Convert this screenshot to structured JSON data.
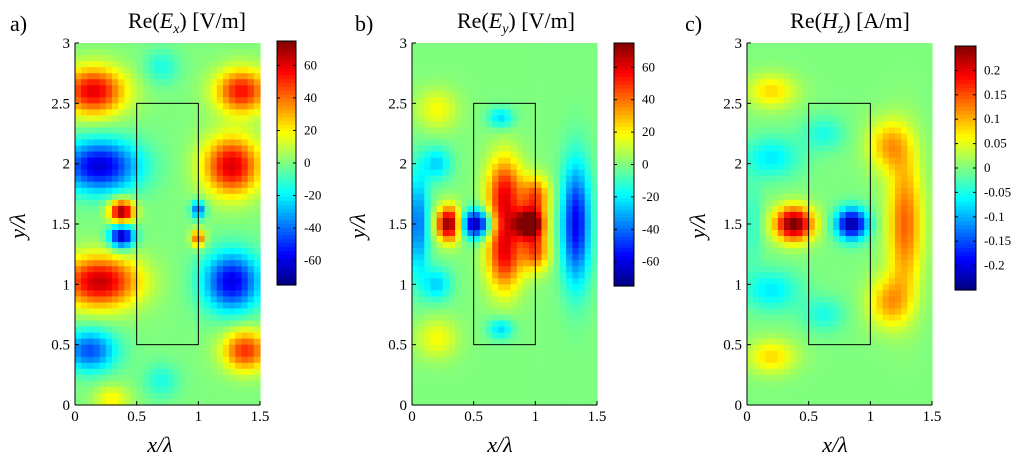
{
  "chart_data": [
    {
      "type": "heatmap",
      "panel_label": "a)",
      "title": {
        "quantity": "Re(",
        "symbol": "E",
        "sub": "x",
        "suffix": ") [V/m]"
      },
      "xlabel": "x/λ",
      "ylabel": "y/λ",
      "xlim": [
        0,
        1.5
      ],
      "ylim": [
        0,
        3
      ],
      "xticks": [
        "0",
        "0.5",
        "1",
        "1.5"
      ],
      "yticks": [
        "0",
        "0.5",
        "1",
        "1.5",
        "2",
        "2.5",
        "3"
      ],
      "colorbar": {
        "range": [
          -75,
          75
        ],
        "ticks": [
          {
            "v": 60,
            "t": "60"
          },
          {
            "v": 40,
            "t": "40"
          },
          {
            "v": 20,
            "t": "20"
          },
          {
            "v": 0,
            "t": "0"
          },
          {
            "v": -20,
            "t": "-20"
          },
          {
            "v": -40,
            "t": "-40"
          },
          {
            "v": -60,
            "t": "-60"
          }
        ]
      },
      "rectangle": {
        "x": [
          0.5,
          1.0
        ],
        "y": [
          0.5,
          2.5
        ]
      },
      "field_features": [
        {
          "x": 0.38,
          "y": 1.6,
          "sx": 0.07,
          "sy": 0.07,
          "v": 75
        },
        {
          "x": 0.38,
          "y": 1.4,
          "sx": 0.07,
          "sy": 0.07,
          "v": -70
        },
        {
          "x": 1.0,
          "y": 1.62,
          "sx": 0.04,
          "sy": 0.05,
          "v": -45
        },
        {
          "x": 1.0,
          "y": 1.38,
          "sx": 0.04,
          "sy": 0.05,
          "v": 45
        },
        {
          "x": 0.15,
          "y": 2.6,
          "sx": 0.18,
          "sy": 0.14,
          "v": 60
        },
        {
          "x": 1.35,
          "y": 2.6,
          "sx": 0.15,
          "sy": 0.13,
          "v": 55
        },
        {
          "x": 0.2,
          "y": 1.98,
          "sx": 0.22,
          "sy": 0.15,
          "v": -62
        },
        {
          "x": 1.27,
          "y": 1.98,
          "sx": 0.16,
          "sy": 0.17,
          "v": 62
        },
        {
          "x": 0.2,
          "y": 1.02,
          "sx": 0.22,
          "sy": 0.15,
          "v": 65
        },
        {
          "x": 1.27,
          "y": 1.02,
          "sx": 0.16,
          "sy": 0.17,
          "v": -60
        },
        {
          "x": 0.12,
          "y": 0.45,
          "sx": 0.15,
          "sy": 0.12,
          "v": -45
        },
        {
          "x": 1.38,
          "y": 0.45,
          "sx": 0.13,
          "sy": 0.12,
          "v": 50
        },
        {
          "x": 0.7,
          "y": 2.8,
          "sx": 0.1,
          "sy": 0.1,
          "v": -15
        },
        {
          "x": 0.7,
          "y": 0.2,
          "sx": 0.1,
          "sy": 0.1,
          "v": -15
        },
        {
          "x": 0.3,
          "y": 0.05,
          "sx": 0.1,
          "sy": 0.08,
          "v": 20
        }
      ]
    },
    {
      "type": "heatmap",
      "panel_label": "b)",
      "title": {
        "quantity": "Re(",
        "symbol": "E",
        "sub": "y",
        "suffix": ") [V/m]"
      },
      "xlabel": "x/λ",
      "ylabel": "y/λ",
      "xlim": [
        0,
        1.5
      ],
      "ylim": [
        0,
        3
      ],
      "xticks": [
        "0",
        "0.5",
        "1",
        "1.5"
      ],
      "yticks": [
        "0",
        "0.5",
        "1",
        "1.5",
        "2",
        "2.5",
        "3"
      ],
      "colorbar": {
        "range": [
          -75,
          75
        ],
        "ticks": [
          {
            "v": 60,
            "t": "60"
          },
          {
            "v": 40,
            "t": "40"
          },
          {
            "v": 20,
            "t": "20"
          },
          {
            "v": 0,
            "t": "0"
          },
          {
            "v": -20,
            "t": "-20"
          },
          {
            "v": -40,
            "t": "-40"
          },
          {
            "v": -60,
            "t": "-60"
          }
        ]
      },
      "rectangle": {
        "x": [
          0.5,
          1.0
        ],
        "y": [
          0.5,
          2.5
        ]
      },
      "field_features": [
        {
          "x": 0.3,
          "y": 1.5,
          "sx": 0.07,
          "sy": 0.1,
          "v": 78
        },
        {
          "x": 0.52,
          "y": 1.5,
          "sx": 0.09,
          "sy": 0.08,
          "v": -72
        },
        {
          "x": 0.95,
          "y": 1.5,
          "sx": 0.08,
          "sy": 0.08,
          "v": 85
        },
        {
          "x": 0.75,
          "y": 1.75,
          "sx": 0.1,
          "sy": 0.22,
          "v": 55
        },
        {
          "x": 0.75,
          "y": 1.25,
          "sx": 0.1,
          "sy": 0.22,
          "v": 55
        },
        {
          "x": 1.0,
          "y": 1.72,
          "sx": 0.08,
          "sy": 0.12,
          "v": 45
        },
        {
          "x": 1.0,
          "y": 1.28,
          "sx": 0.08,
          "sy": 0.12,
          "v": 45
        },
        {
          "x": 1.33,
          "y": 1.5,
          "sx": 0.08,
          "sy": 0.35,
          "v": -58
        },
        {
          "x": 0.05,
          "y": 1.5,
          "sx": 0.06,
          "sy": 0.3,
          "v": -40
        },
        {
          "x": 0.2,
          "y": 2.0,
          "sx": 0.08,
          "sy": 0.1,
          "v": -25
        },
        {
          "x": 0.2,
          "y": 1.0,
          "sx": 0.08,
          "sy": 0.1,
          "v": -25
        },
        {
          "x": 0.72,
          "y": 2.38,
          "sx": 0.07,
          "sy": 0.06,
          "v": -25
        },
        {
          "x": 0.72,
          "y": 0.63,
          "sx": 0.07,
          "sy": 0.06,
          "v": -25
        },
        {
          "x": 0.2,
          "y": 2.45,
          "sx": 0.12,
          "sy": 0.12,
          "v": 18
        },
        {
          "x": 0.2,
          "y": 0.55,
          "sx": 0.12,
          "sy": 0.12,
          "v": 18
        }
      ]
    },
    {
      "type": "heatmap",
      "panel_label": "c)",
      "title": {
        "quantity": "Re(",
        "symbol": "H",
        "sub": "z",
        "suffix": ") [A/m]"
      },
      "xlabel": "x/λ",
      "ylabel": "y/λ",
      "xlim": [
        0,
        1.5
      ],
      "ylim": [
        0,
        3
      ],
      "xticks": [
        "0",
        "0.5",
        "1",
        "1.5"
      ],
      "yticks": [
        "0",
        "0.5",
        "1",
        "1.5",
        "2",
        "2.5",
        "3"
      ],
      "colorbar": {
        "range": [
          -0.25,
          0.25
        ],
        "ticks": [
          {
            "v": 0.2,
            "t": "0.2"
          },
          {
            "v": 0.15,
            "t": "0.15"
          },
          {
            "v": 0.1,
            "t": "0.1"
          },
          {
            "v": 0.05,
            "t": "0.05"
          },
          {
            "v": 0,
            "t": "0"
          },
          {
            "v": -0.05,
            "t": "-0.05"
          },
          {
            "v": -0.1,
            "t": "-0.1"
          },
          {
            "v": -0.15,
            "t": "-0.15"
          },
          {
            "v": -0.2,
            "t": "-0.2"
          }
        ]
      },
      "rectangle": {
        "x": [
          0.5,
          1.0
        ],
        "y": [
          0.5,
          2.5
        ]
      },
      "field_features": [
        {
          "x": 0.38,
          "y": 1.5,
          "sx": 0.11,
          "sy": 0.1,
          "v": 0.26
        },
        {
          "x": 0.85,
          "y": 1.5,
          "sx": 0.09,
          "sy": 0.09,
          "v": -0.24
        },
        {
          "x": 1.28,
          "y": 1.5,
          "sx": 0.1,
          "sy": 0.4,
          "v": 0.14
        },
        {
          "x": 1.15,
          "y": 2.15,
          "sx": 0.12,
          "sy": 0.15,
          "v": 0.1
        },
        {
          "x": 1.15,
          "y": 0.85,
          "sx": 0.12,
          "sy": 0.15,
          "v": 0.1
        },
        {
          "x": 0.2,
          "y": 2.05,
          "sx": 0.16,
          "sy": 0.12,
          "v": -0.07
        },
        {
          "x": 0.2,
          "y": 0.95,
          "sx": 0.16,
          "sy": 0.12,
          "v": -0.07
        },
        {
          "x": 0.62,
          "y": 2.25,
          "sx": 0.12,
          "sy": 0.1,
          "v": -0.05
        },
        {
          "x": 0.62,
          "y": 0.75,
          "sx": 0.12,
          "sy": 0.1,
          "v": -0.05
        },
        {
          "x": 0.2,
          "y": 2.6,
          "sx": 0.14,
          "sy": 0.1,
          "v": 0.08
        },
        {
          "x": 0.2,
          "y": 0.4,
          "sx": 0.14,
          "sy": 0.1,
          "v": 0.08
        },
        {
          "x": 0.05,
          "y": 1.5,
          "sx": 0.05,
          "sy": 0.25,
          "v": -0.04
        }
      ]
    }
  ]
}
